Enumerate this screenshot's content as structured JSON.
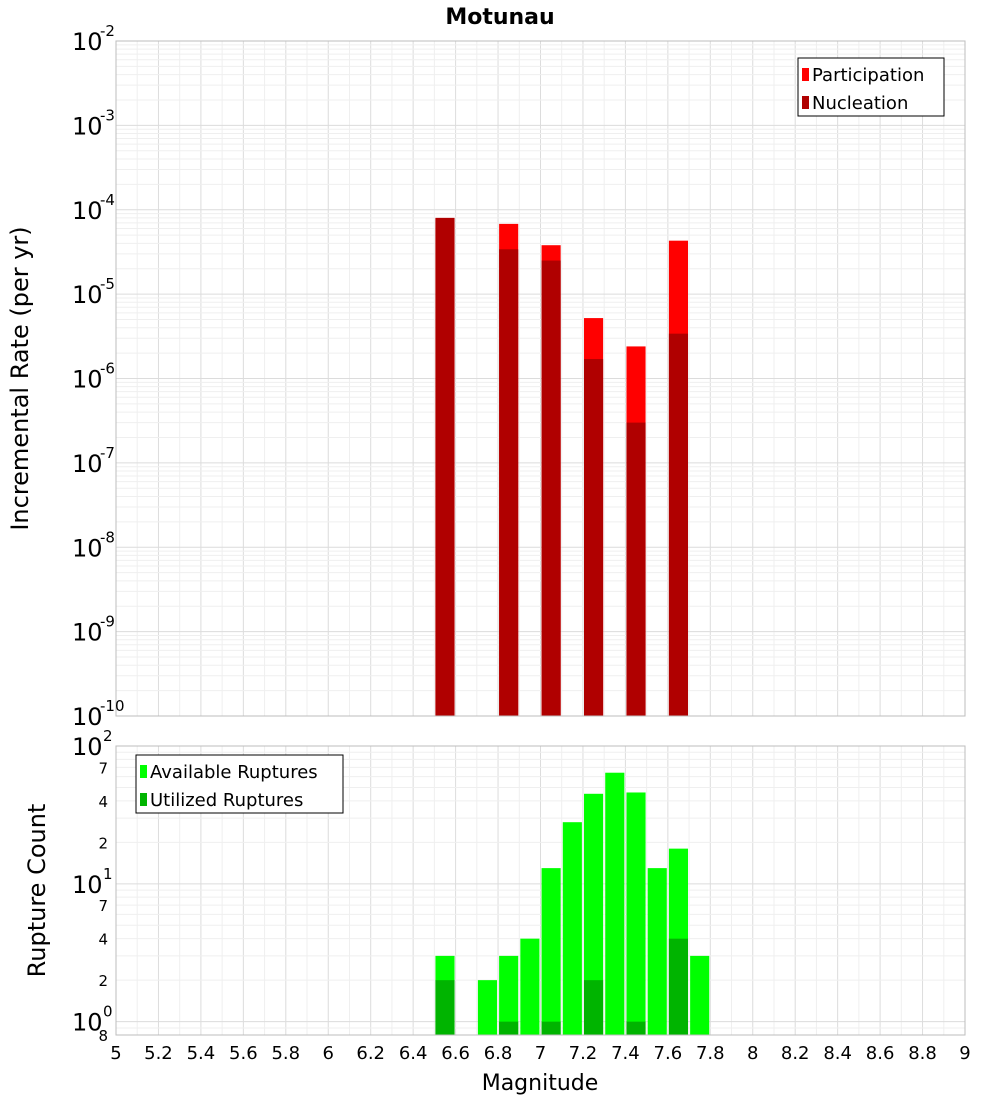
{
  "chart_data": [
    {
      "type": "bar",
      "title": "Motunau",
      "ylabel": "Incremental Rate (per yr)",
      "xlabel": "",
      "x_range": [
        5,
        9
      ],
      "y_scale": "log",
      "y_range": [
        1e-10,
        0.01
      ],
      "y_tick_exponents": [
        "-2",
        "-3",
        "-4",
        "-5",
        "-6",
        "-7",
        "-8",
        "-9",
        "-10"
      ],
      "y_tick_base": "10",
      "grid": true,
      "legend_position": "top-right",
      "bar_width": 0.09,
      "series": [
        {
          "name": "Participation",
          "color": "#ff0000",
          "x": [
            6.55,
            6.85,
            7.05,
            7.25,
            7.45,
            7.65
          ],
          "values": [
            8e-05,
            6.8e-05,
            3.8e-05,
            5.2e-06,
            2.4e-06,
            4.3e-05
          ]
        },
        {
          "name": "Nucleation",
          "color": "#b00000",
          "x": [
            6.55,
            6.85,
            7.05,
            7.25,
            7.45,
            7.65
          ],
          "values": [
            8e-05,
            3.4e-05,
            2.5e-05,
            1.7e-06,
            3e-07,
            3.4e-06
          ]
        }
      ]
    },
    {
      "type": "bar",
      "title": "",
      "ylabel": "Rupture Count",
      "xlabel": "Magnitude",
      "x_range": [
        5,
        9
      ],
      "x_ticks": [
        "5",
        "5.2",
        "5.4",
        "5.6",
        "5.8",
        "6",
        "6.2",
        "6.4",
        "6.6",
        "6.8",
        "7",
        "7.2",
        "7.4",
        "7.6",
        "7.8",
        "8",
        "8.2",
        "8.4",
        "8.6",
        "8.8",
        "9"
      ],
      "y_scale": "log",
      "y_range": [
        0.8,
        100
      ],
      "y_major_ticks": [
        {
          "value": 100,
          "base": "10",
          "exp": "2"
        },
        {
          "value": 10,
          "base": "10",
          "exp": "1"
        },
        {
          "value": 1,
          "base": "10",
          "exp": "0"
        }
      ],
      "y_minor_ticks": [
        {
          "value": 70,
          "label": "7"
        },
        {
          "value": 40,
          "label": "4"
        },
        {
          "value": 20,
          "label": "2"
        },
        {
          "value": 7,
          "label": "7"
        },
        {
          "value": 4,
          "label": "4"
        },
        {
          "value": 2,
          "label": "2"
        },
        {
          "value": 0.8,
          "label": "8"
        }
      ],
      "grid": true,
      "legend_position": "top-left",
      "bar_width": 0.09,
      "series": [
        {
          "name": "Available Ruptures",
          "color": "#00ff00",
          "x": [
            6.55,
            6.75,
            6.85,
            6.95,
            7.05,
            7.15,
            7.25,
            7.35,
            7.45,
            7.55,
            7.65,
            7.75
          ],
          "values": [
            3,
            2,
            3,
            4,
            13,
            28,
            45,
            64,
            46,
            13,
            18,
            3
          ]
        },
        {
          "name": "Utilized Ruptures",
          "color": "#00b400",
          "x": [
            6.55,
            6.85,
            7.05,
            7.25,
            7.45,
            7.65
          ],
          "values": [
            2,
            1,
            1,
            2,
            1,
            4
          ]
        }
      ]
    }
  ]
}
